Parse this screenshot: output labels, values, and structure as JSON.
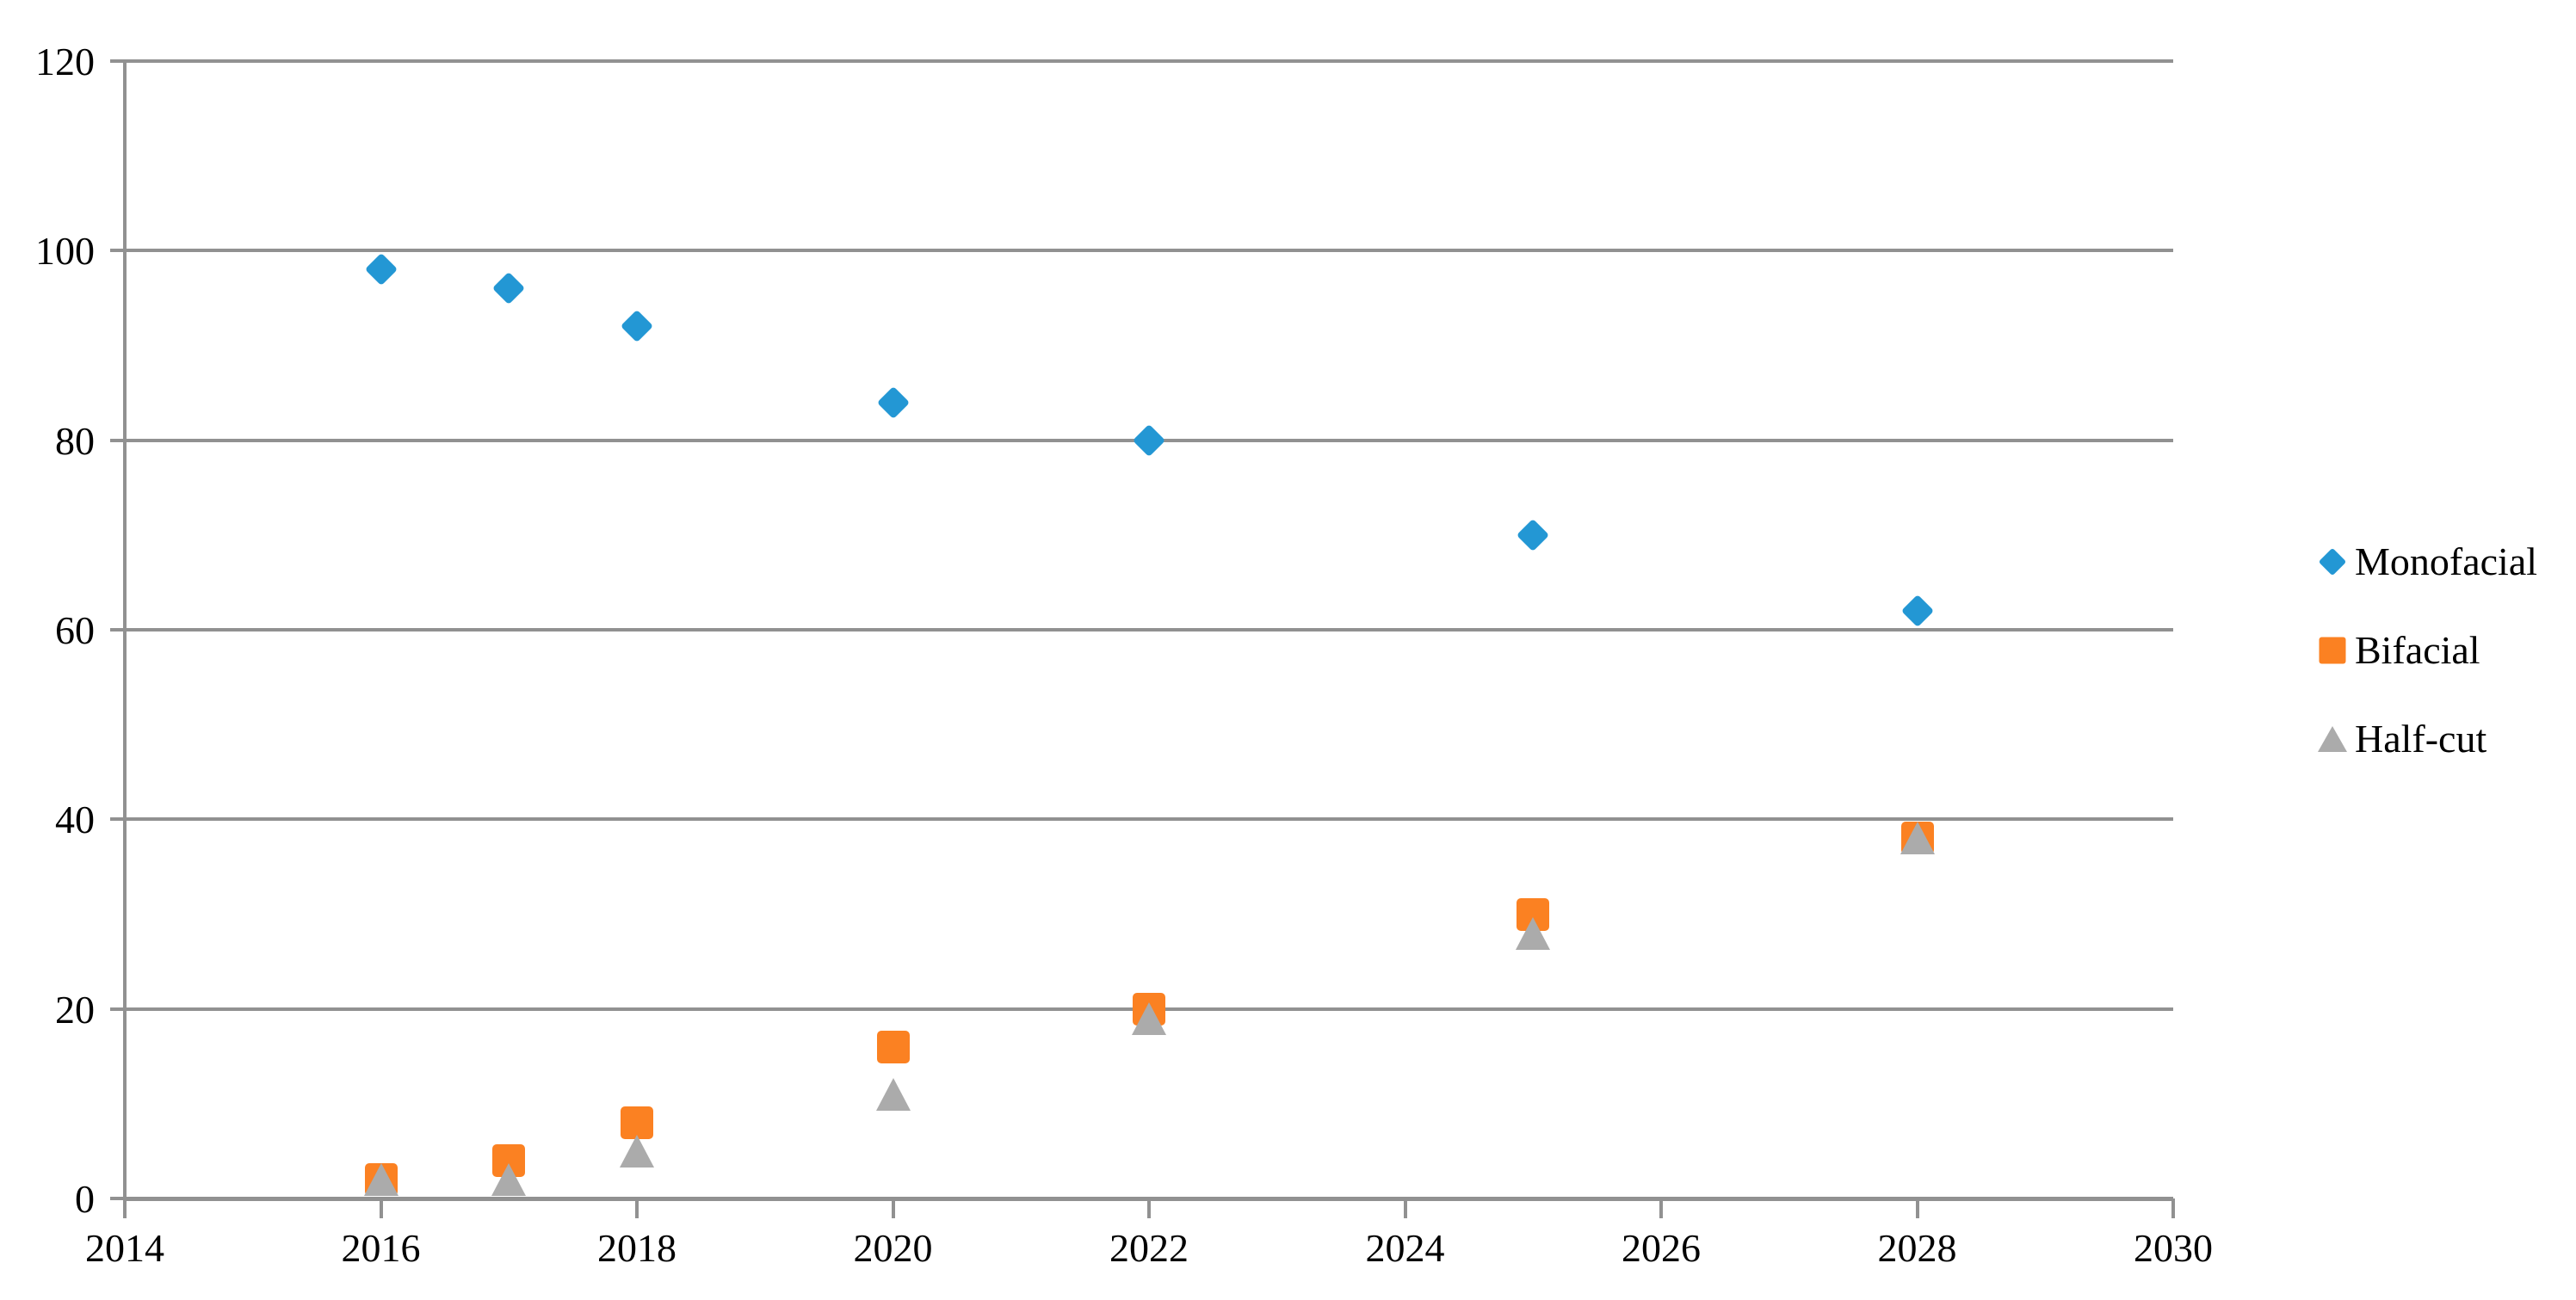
{
  "chart_data": {
    "type": "scatter",
    "x": [
      2016,
      2017,
      2018,
      2020,
      2022,
      2025,
      2028
    ],
    "series": [
      {
        "name": "Monofacial",
        "marker": "diamond",
        "color": "#2397D4",
        "values": [
          98,
          96,
          92,
          84,
          80,
          70,
          62
        ]
      },
      {
        "name": "Bifacial",
        "marker": "square",
        "color": "#FB8122",
        "values": [
          2,
          4,
          8,
          16,
          20,
          30,
          38
        ]
      },
      {
        "name": "Half-cut",
        "marker": "triangle",
        "color": "#ABABAB",
        "values": [
          2,
          2,
          5,
          11,
          19,
          28,
          38
        ]
      }
    ],
    "x_ticks": [
      2014,
      2016,
      2018,
      2020,
      2022,
      2024,
      2026,
      2028,
      2030
    ],
    "y_ticks": [
      0,
      20,
      40,
      60,
      80,
      100,
      120
    ],
    "xlim": [
      2014,
      2030
    ],
    "ylim": [
      0,
      120
    ],
    "title": "",
    "xlabel": "",
    "ylabel": "",
    "grid": "horizontal",
    "legend_position": "right",
    "legend_entries": [
      "Monofacial",
      "Bifacial",
      "Half-cut"
    ]
  },
  "colors": {
    "axis_and_grid": "#919191",
    "text": "#000000",
    "background": "#FFFFFF",
    "monofacial": "#2397D4",
    "bifacial": "#FB8122",
    "halfcut": "#ABABAB"
  }
}
